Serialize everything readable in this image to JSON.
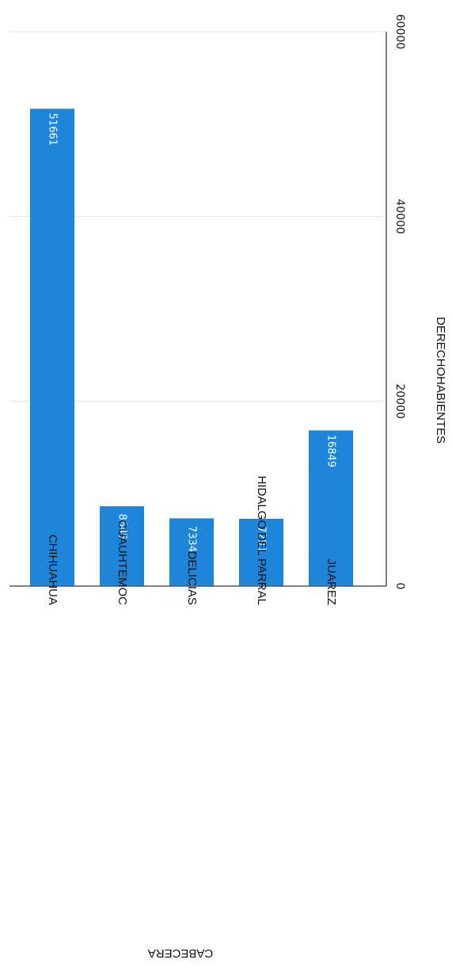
{
  "chart_data": {
    "type": "bar",
    "orientation": "horizontal",
    "categories": [
      "CHIHUAHUA",
      "CUAUHTEMOC",
      "DELICIAS",
      "HIDALGO DEL PARRAL",
      "JUAREZ"
    ],
    "values": [
      51661,
      8645,
      7334,
      7291,
      16849
    ],
    "data_labels": [
      "51661",
      "8645",
      "7334",
      "7291",
      "16849"
    ],
    "ticks": [
      0,
      20000,
      40000,
      60000
    ],
    "tick_labels": [
      "0",
      "20000",
      "40000",
      "60000"
    ],
    "xlim": [
      0,
      60000
    ],
    "xlabel": "DERECHOHABIENTES",
    "ylabel": "CABECERA",
    "grid": true,
    "bar_color": "#1d86d9",
    "page_rotation": "90deg-clockwise"
  }
}
